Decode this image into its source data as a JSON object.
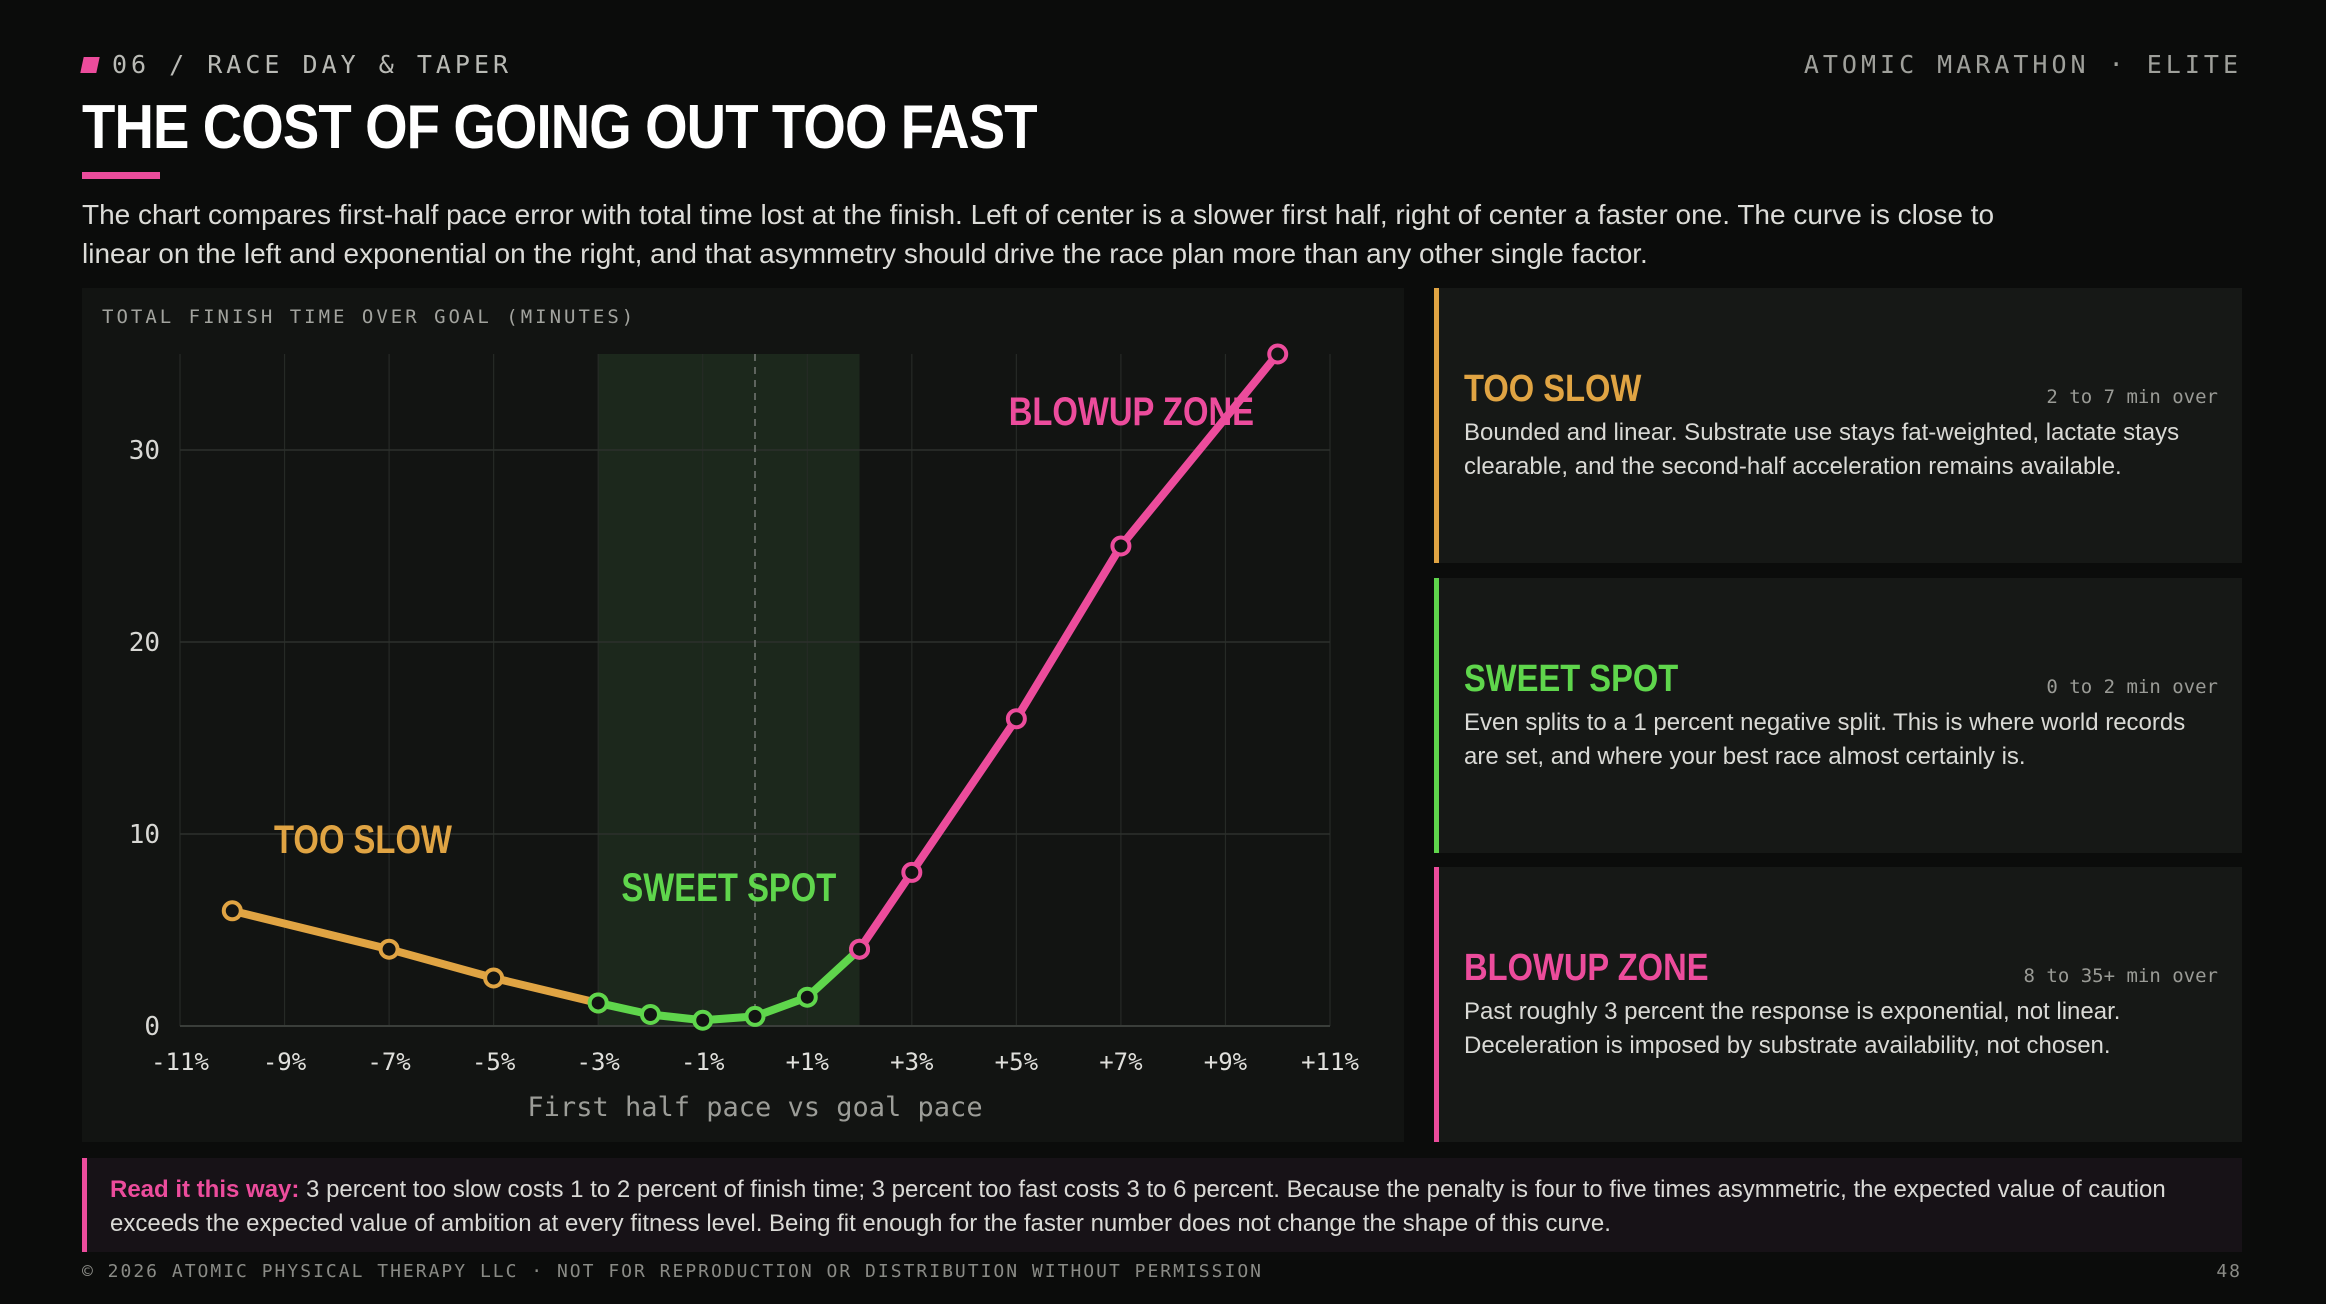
{
  "header": {
    "kicker": "06 / RACE DAY & TAPER",
    "brand": "ATOMIC MARATHON · ELITE",
    "title": "THE COST OF GOING OUT TOO FAST",
    "lede": "The chart compares first-half pace error with total time lost at the finish. Left of center is a slower first half, right of center a faster one. The curve is close to linear on the left and exponential on the right, and that asymmetry should drive the race plan more than any other single factor."
  },
  "colors": {
    "accent": "#ec4c9c",
    "too_slow": "#e0a443",
    "sweet_spot": "#5fd64c",
    "blowup": "#ec4c9c",
    "sweet_band": "#1f2c1e"
  },
  "chart_data": {
    "type": "line",
    "ylabel": "TOTAL FINISH TIME OVER GOAL (MINUTES)",
    "xlabel": "First half pace vs goal pace",
    "xlim": [
      -11,
      11
    ],
    "ylim": [
      0,
      35
    ],
    "x_ticks": [
      "-11%",
      "-9%",
      "-7%",
      "-5%",
      "-3%",
      "-1%",
      "+1%",
      "+3%",
      "+5%",
      "+7%",
      "+9%",
      "+11%"
    ],
    "x_tick_values": [
      -11,
      -9,
      -7,
      -5,
      -3,
      -1,
      1,
      3,
      5,
      7,
      9,
      11
    ],
    "y_ticks": [
      0,
      10,
      20,
      30
    ],
    "sweet_band": [
      -3,
      2
    ],
    "goal_marker_x": 0,
    "series": [
      {
        "name": "TOO SLOW",
        "color": "#e0a443",
        "points": [
          [
            -10,
            6
          ],
          [
            -7,
            4
          ],
          [
            -5,
            2.5
          ],
          [
            -3,
            1.2
          ]
        ]
      },
      {
        "name": "SWEET SPOT",
        "color": "#5fd64c",
        "points": [
          [
            -3,
            1.2
          ],
          [
            -2,
            0.6
          ],
          [
            -1,
            0.3
          ],
          [
            0,
            0.5
          ],
          [
            1,
            1.5
          ],
          [
            2,
            4
          ]
        ]
      },
      {
        "name": "BLOWUP ZONE",
        "color": "#ec4c9c",
        "points": [
          [
            2,
            4
          ],
          [
            3,
            8
          ],
          [
            5,
            16
          ],
          [
            7,
            25
          ],
          [
            10,
            35
          ]
        ]
      }
    ],
    "annotations": [
      {
        "text": "TOO SLOW",
        "x": -7.5,
        "y": 9,
        "color": "#e0a443"
      },
      {
        "text": "SWEET SPOT",
        "x": -0.5,
        "y": 6.5,
        "color": "#5fd64c"
      },
      {
        "text": "BLOWUP ZONE",
        "x": 7.2,
        "y": 31.3,
        "color": "#ec4c9c"
      }
    ]
  },
  "cards": [
    {
      "title": "TOO SLOW",
      "range": "2 to 7 min over",
      "body": "Bounded and linear. Substrate use stays fat-weighted, lactate stays clearable, and the second-half acceleration remains available.",
      "color": "#e0a443"
    },
    {
      "title": "SWEET SPOT",
      "range": "0 to 2 min over",
      "body": "Even splits to a 1 percent negative split. This is where world records are set, and where your best race almost certainly is.",
      "color": "#5fd64c"
    },
    {
      "title": "BLOWUP ZONE",
      "range": "8 to 35+ min over",
      "body": "Past roughly 3 percent the response is exponential, not linear. Deceleration is imposed by substrate availability, not chosen.",
      "color": "#ec4c9c"
    }
  ],
  "callout": {
    "lead": "Read it this way:",
    "text": "3 percent too slow costs 1 to 2 percent of finish time; 3 percent too fast costs 3 to 6 percent. Because the penalty is four to five times asymmetric, the expected value of caution exceeds the expected value of ambition at every fitness level. Being fit enough for the faster number does not change the shape of this curve."
  },
  "footer": {
    "copyright": "© 2026 ATOMIC PHYSICAL THERAPY LLC · NOT FOR REPRODUCTION OR DISTRIBUTION WITHOUT PERMISSION",
    "page": "48"
  }
}
